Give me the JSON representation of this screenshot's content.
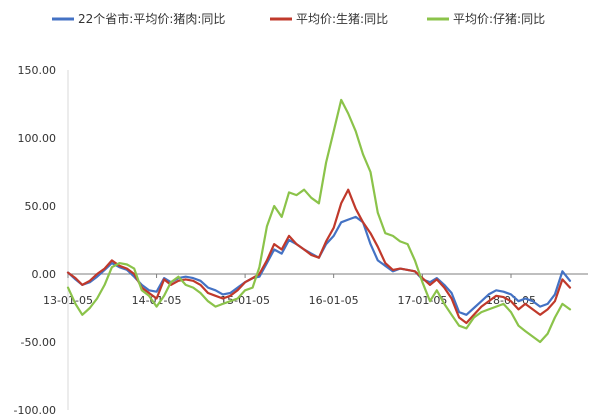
{
  "chart_data": {
    "type": "line",
    "title": "",
    "xlabel": "",
    "ylabel": "",
    "ylim": [
      -100,
      150
    ],
    "yticks": [
      "150.00",
      "100.00",
      "50.00",
      "0.00",
      "-50.00",
      "-100.00"
    ],
    "ytick_values": [
      150,
      100,
      50,
      0,
      -50,
      -100
    ],
    "xlim": [
      "2013-01-05",
      "2018-09-30"
    ],
    "xticks": [
      "13-01-05",
      "14-01-05",
      "15-01-05",
      "16-01-05",
      "17-01-05",
      "18-01-05"
    ],
    "xtick_dates": [
      "2013-01-05",
      "2014-01-05",
      "2015-01-05",
      "2016-01-05",
      "2017-01-05",
      "2018-01-05"
    ],
    "grid": false,
    "legend_position": "top",
    "x": [
      "2013-01-05",
      "2013-02-05",
      "2013-03-05",
      "2013-04-05",
      "2013-05-05",
      "2013-06-05",
      "2013-07-05",
      "2013-08-05",
      "2013-09-05",
      "2013-10-05",
      "2013-11-05",
      "2013-12-05",
      "2014-01-05",
      "2014-02-05",
      "2014-03-05",
      "2014-04-05",
      "2014-05-05",
      "2014-06-05",
      "2014-07-05",
      "2014-08-05",
      "2014-09-05",
      "2014-10-05",
      "2014-11-05",
      "2014-12-05",
      "2015-01-05",
      "2015-02-05",
      "2015-03-05",
      "2015-04-05",
      "2015-05-05",
      "2015-06-05",
      "2015-07-05",
      "2015-08-05",
      "2015-09-05",
      "2015-10-05",
      "2015-11-05",
      "2015-12-05",
      "2016-01-05",
      "2016-02-05",
      "2016-03-05",
      "2016-04-05",
      "2016-05-05",
      "2016-06-05",
      "2016-07-05",
      "2016-08-05",
      "2016-09-05",
      "2016-10-05",
      "2016-11-05",
      "2016-12-05",
      "2017-01-05",
      "2017-02-05",
      "2017-03-05",
      "2017-04-05",
      "2017-05-05",
      "2017-06-05",
      "2017-07-05",
      "2017-08-05",
      "2017-09-05",
      "2017-10-05",
      "2017-11-05",
      "2017-12-05",
      "2018-01-05",
      "2018-02-05",
      "2018-03-05",
      "2018-04-05",
      "2018-05-05",
      "2018-06-05",
      "2018-07-05",
      "2018-08-05",
      "2018-09-05"
    ],
    "series": [
      {
        "name": "22个省市:平均价:猪肉:同比",
        "color": "#4472c4",
        "values": [
          1,
          -4,
          -8,
          -6,
          -2,
          3,
          8,
          5,
          3,
          -2,
          -8,
          -12,
          -13,
          -3,
          -6,
          -3,
          -2,
          -3,
          -5,
          -10,
          -12,
          -15,
          -14,
          -10,
          -6,
          -3,
          -2,
          8,
          18,
          15,
          25,
          22,
          18,
          15,
          12,
          22,
          28,
          38,
          40,
          42,
          38,
          22,
          10,
          6,
          2,
          4,
          3,
          2,
          -4,
          -6,
          -3,
          -8,
          -14,
          -28,
          -30,
          -25,
          -20,
          -15,
          -12,
          -13,
          -15,
          -20,
          -18,
          -20,
          -24,
          -22,
          -15,
          2,
          -5
        ]
      },
      {
        "name": "平均价:生猪:同比",
        "color": "#c0392b",
        "values": [
          1,
          -3,
          -8,
          -5,
          0,
          4,
          10,
          6,
          4,
          0,
          -10,
          -14,
          -18,
          -4,
          -8,
          -5,
          -4,
          -5,
          -8,
          -14,
          -16,
          -18,
          -16,
          -12,
          -6,
          -3,
          0,
          10,
          22,
          18,
          28,
          22,
          18,
          14,
          12,
          24,
          34,
          52,
          62,
          48,
          38,
          30,
          20,
          8,
          3,
          4,
          3,
          2,
          -3,
          -8,
          -4,
          -10,
          -18,
          -32,
          -36,
          -30,
          -24,
          -20,
          -16,
          -17,
          -20,
          -26,
          -22,
          -26,
          -30,
          -26,
          -20,
          -4,
          -10
        ]
      },
      {
        "name": "平均价:仔猪:同比",
        "color": "#8bc34a",
        "values": [
          -10,
          -22,
          -30,
          -25,
          -18,
          -8,
          5,
          8,
          7,
          4,
          -12,
          -16,
          -24,
          -16,
          -6,
          -2,
          -8,
          -10,
          -14,
          -20,
          -24,
          -22,
          -20,
          -18,
          -12,
          -10,
          5,
          35,
          50,
          42,
          60,
          58,
          62,
          56,
          52,
          82,
          105,
          128,
          118,
          105,
          88,
          75,
          45,
          30,
          28,
          24,
          22,
          10,
          -6,
          -20,
          -12,
          -22,
          -30,
          -38,
          -40,
          -32,
          -28,
          -26,
          -24,
          -22,
          -28,
          -38,
          -42,
          -46,
          -50,
          -44,
          -32,
          -22,
          -26
        ]
      }
    ]
  }
}
